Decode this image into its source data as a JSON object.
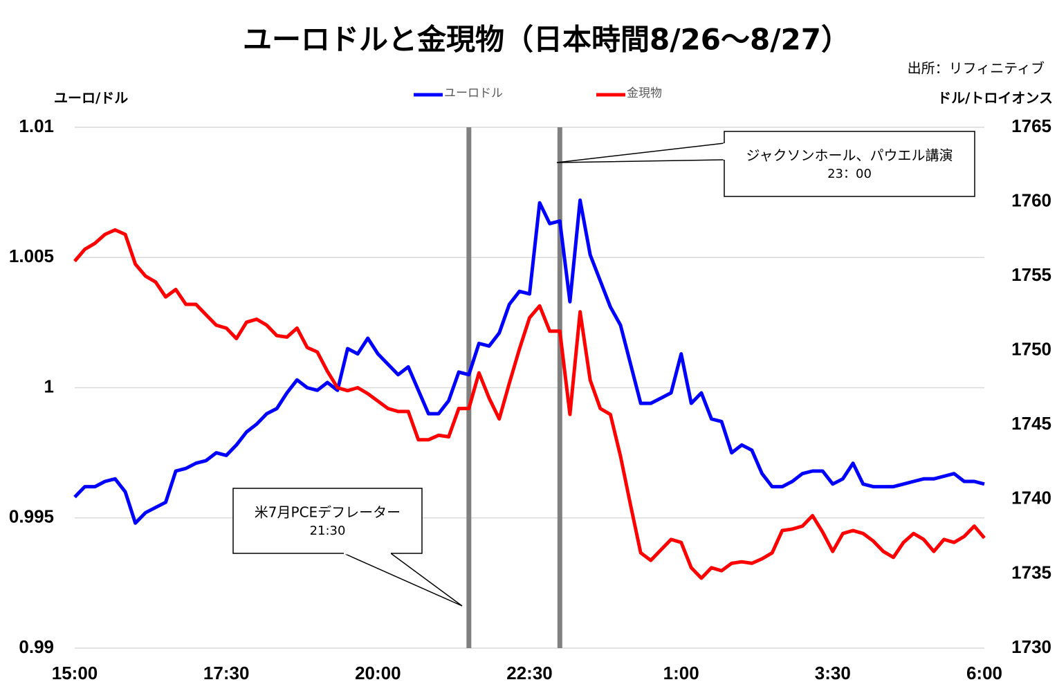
{
  "chart_data": {
    "type": "line",
    "title": "ユーロドルと金現物（日本時間8/26～8/27）",
    "source": "出所：リフィニティブ",
    "y_label": "ユーロ/ドル",
    "y2_label": "ドル/トロイオンス",
    "categories": [
      "15:00",
      null,
      null,
      null,
      null,
      null,
      null,
      null,
      null,
      null,
      null,
      null,
      null,
      null,
      null,
      "17:30",
      null,
      null,
      null,
      null,
      null,
      null,
      null,
      null,
      null,
      null,
      null,
      null,
      null,
      null,
      "20:00",
      null,
      null,
      null,
      null,
      null,
      null,
      null,
      null,
      null,
      null,
      null,
      null,
      null,
      null,
      "22:30",
      null,
      null,
      null,
      null,
      null,
      null,
      null,
      null,
      null,
      null,
      null,
      null,
      null,
      null,
      "1:00",
      null,
      null,
      null,
      null,
      null,
      null,
      null,
      null,
      null,
      null,
      null,
      null,
      null,
      null,
      "3:30",
      null,
      null,
      null,
      null,
      null,
      null,
      null,
      null,
      null,
      null,
      null,
      null,
      null,
      null,
      "6:00"
    ],
    "series": [
      {
        "name": "ユーロドル",
        "color": "#0000ff",
        "axis": "y",
        "values": [
          0.9958,
          0.9962,
          0.9962,
          0.9964,
          0.9965,
          0.996,
          0.9948,
          0.9952,
          0.9954,
          0.9956,
          0.9968,
          0.9969,
          0.9971,
          0.9972,
          0.9975,
          0.9974,
          0.9978,
          0.9983,
          0.9986,
          0.999,
          0.9992,
          0.9998,
          1.0003,
          1.0,
          0.9999,
          1.0002,
          0.9999,
          1.0015,
          1.0013,
          1.0019,
          1.0013,
          1.0009,
          1.0005,
          1.0008,
          0.9999,
          0.999,
          0.999,
          0.9995,
          1.0006,
          1.0005,
          1.0017,
          1.0016,
          1.0021,
          1.0032,
          1.0037,
          1.0036,
          1.0071,
          1.0063,
          1.0064,
          1.0033,
          1.0072,
          1.0051,
          1.0041,
          1.0031,
          1.0024,
          1.0009,
          0.9994,
          0.9994,
          0.9996,
          0.9998,
          1.0013,
          0.9994,
          0.9998,
          0.9988,
          0.9987,
          0.9975,
          0.9978,
          0.9976,
          0.9967,
          0.9962,
          0.9962,
          0.9964,
          0.9967,
          0.9968,
          0.9968,
          0.9963,
          0.9965,
          0.9971,
          0.9963,
          0.9962,
          0.9962,
          0.9962,
          0.9963,
          0.9964,
          0.9965,
          0.9965,
          0.9966,
          0.9967,
          0.9964,
          0.9964,
          0.9963
        ]
      },
      {
        "name": "金現物",
        "color": "#ff0000",
        "axis": "y2",
        "values": [
          1756.0,
          1756.8,
          1757.2,
          1757.8,
          1758.1,
          1757.8,
          1755.8,
          1755.0,
          1754.6,
          1753.6,
          1754.1,
          1753.1,
          1753.1,
          1752.4,
          1751.7,
          1751.5,
          1750.8,
          1751.9,
          1752.1,
          1751.7,
          1751.0,
          1750.9,
          1751.5,
          1750.2,
          1749.9,
          1748.6,
          1747.5,
          1747.3,
          1747.5,
          1747.1,
          1746.6,
          1746.1,
          1745.9,
          1745.9,
          1744.0,
          1744.0,
          1744.3,
          1744.2,
          1746.1,
          1746.1,
          1748.5,
          1746.8,
          1745.4,
          1747.8,
          1750.1,
          1752.2,
          1753.0,
          1751.3,
          1751.3,
          1745.7,
          1752.6,
          1748.0,
          1746.1,
          1745.7,
          1742.9,
          1739.6,
          1736.4,
          1735.9,
          1736.6,
          1737.3,
          1737.1,
          1735.4,
          1734.7,
          1735.4,
          1735.2,
          1735.7,
          1735.8,
          1735.7,
          1736.0,
          1736.4,
          1737.9,
          1738.0,
          1738.2,
          1738.9,
          1737.8,
          1736.5,
          1737.7,
          1737.9,
          1737.7,
          1737.2,
          1736.5,
          1736.1,
          1737.1,
          1737.7,
          1737.3,
          1736.5,
          1737.3,
          1737.1,
          1737.5,
          1738.2,
          1737.4
        ]
      }
    ],
    "ylim": [
      0.99,
      1.01
    ],
    "yticks": [
      0.99,
      0.995,
      1,
      1.005,
      1.01
    ],
    "y2lim": [
      1730,
      1765
    ],
    "y2ticks": [
      1730,
      1735,
      1740,
      1745,
      1750,
      1755,
      1760,
      1765
    ],
    "grid": true,
    "legend": "top",
    "annotations": [
      {
        "text": "米7月PCEデフレーター",
        "time": "21:30"
      },
      {
        "text": "ジャクソンホール、パウエル講演",
        "time": "23：00"
      }
    ]
  }
}
